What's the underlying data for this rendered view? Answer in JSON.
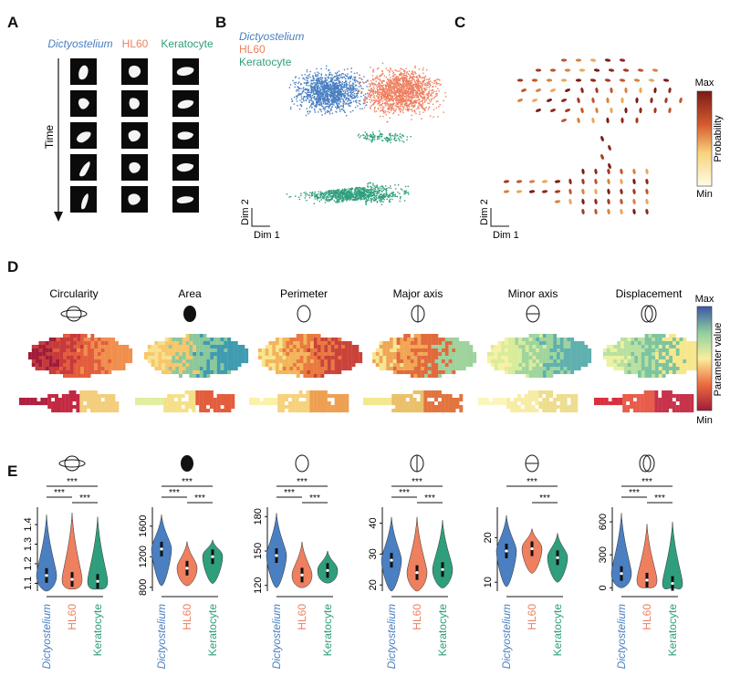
{
  "colors": {
    "dictyostelium": "#4a7fc1",
    "hl60": "#ee7f5f",
    "keratocyte": "#2f9e7c"
  },
  "panels": {
    "A": {
      "letter": "A",
      "columns": [
        "Dictyostelium",
        "HL60",
        "Keratocyte"
      ],
      "time_label": "Time"
    },
    "B": {
      "letter": "B",
      "legend": [
        "Dictyostelium",
        "HL60",
        "Keratocyte"
      ],
      "dim1": "Dim 1",
      "dim2": "Dim 2"
    },
    "C": {
      "letter": "C",
      "colorbar_max": "Max",
      "colorbar_min": "Min",
      "colorbar_label": "Probability",
      "dim1": "Dim 1",
      "dim2": "Dim 2"
    },
    "D": {
      "letter": "D",
      "parameters": [
        "Circularity",
        "Area",
        "Perimeter",
        "Major axis",
        "Minor axis",
        "Displacement"
      ],
      "parameter_icons": [
        "circularity-icon",
        "area-icon",
        "perimeter-icon",
        "major-axis-icon",
        "minor-axis-icon",
        "displacement-icon"
      ],
      "colorbar_max": "Max",
      "colorbar_min": "Min",
      "colorbar_label": "Parameter value"
    },
    "E": {
      "letter": "E",
      "significance": "***",
      "x_labels": [
        "Dictyostelium",
        "HL60",
        "Keratocyte"
      ]
    }
  },
  "chart_data": [
    {
      "type": "violin",
      "parameter": "Circularity",
      "icon": "circularity-icon",
      "categories": [
        "Dictyostelium",
        "HL60",
        "Keratocyte"
      ],
      "yticks": [
        "1.1",
        "1.2",
        "1.3",
        "1.4"
      ],
      "ylim": [
        1.06,
        1.47
      ],
      "medians": [
        1.14,
        1.12,
        1.11
      ],
      "ranges": [
        [
          1.06,
          1.45
        ],
        [
          1.07,
          1.46
        ],
        [
          1.07,
          1.44
        ]
      ],
      "comparisons": [
        "***",
        "***",
        "***"
      ]
    },
    {
      "type": "violin",
      "parameter": "Area",
      "icon": "area-icon",
      "categories": [
        "Dictyostelium",
        "HL60",
        "Keratocyte"
      ],
      "yticks": [
        "800",
        "1200",
        "1600"
      ],
      "ylim": [
        750,
        1800
      ],
      "medians": [
        1300,
        1050,
        1200
      ],
      "ranges": [
        [
          820,
          1750
        ],
        [
          820,
          1400
        ],
        [
          850,
          1420
        ]
      ],
      "comparisons": [
        "***",
        "***",
        "***"
      ]
    },
    {
      "type": "violin",
      "parameter": "Perimeter",
      "icon": "perimeter-icon",
      "categories": [
        "Dictyostelium",
        "HL60",
        "Keratocyte"
      ],
      "yticks": [
        "120",
        "150",
        "180"
      ],
      "ylim": [
        115,
        185
      ],
      "medians": [
        146,
        129,
        133
      ],
      "ranges": [
        [
          118,
          183
        ],
        [
          118,
          158
        ],
        [
          122,
          150
        ]
      ],
      "comparisons": [
        "***",
        "***",
        "***"
      ]
    },
    {
      "type": "violin",
      "parameter": "Major axis",
      "icon": "major-axis-icon",
      "categories": [
        "Dictyostelium",
        "HL60",
        "Keratocyte"
      ],
      "yticks": [
        "20",
        "30",
        "40"
      ],
      "ylim": [
        18,
        44
      ],
      "medians": [
        28,
        24,
        25
      ],
      "ranges": [
        [
          18,
          42
        ],
        [
          18,
          42
        ],
        [
          19,
          41
        ]
      ],
      "comparisons": [
        "***",
        "***",
        "***"
      ]
    },
    {
      "type": "violin",
      "parameter": "Minor axis",
      "icon": "minor-axis-icon",
      "categories": [
        "Dictyostelium",
        "HL60",
        "Keratocyte"
      ],
      "yticks": [
        "10",
        "20"
      ],
      "ylim": [
        8,
        26
      ],
      "medians": [
        17,
        17.5,
        15.5
      ],
      "ranges": [
        [
          9,
          25
        ],
        [
          12,
          22
        ],
        [
          10,
          21
        ]
      ],
      "comparisons": [
        "***",
        "***"
      ]
    },
    {
      "type": "violin",
      "parameter": "Displacement",
      "icon": "displacement-icon",
      "categories": [
        "Dictyostelium",
        "HL60",
        "Keratocyte"
      ],
      "yticks": [
        "0",
        "300",
        "600"
      ],
      "ylim": [
        -30,
        700
      ],
      "medians": [
        130,
        70,
        40
      ],
      "ranges": [
        [
          0,
          680
        ],
        [
          0,
          580
        ],
        [
          0,
          600
        ]
      ],
      "comparisons": [
        "***",
        "***",
        "***"
      ]
    }
  ]
}
